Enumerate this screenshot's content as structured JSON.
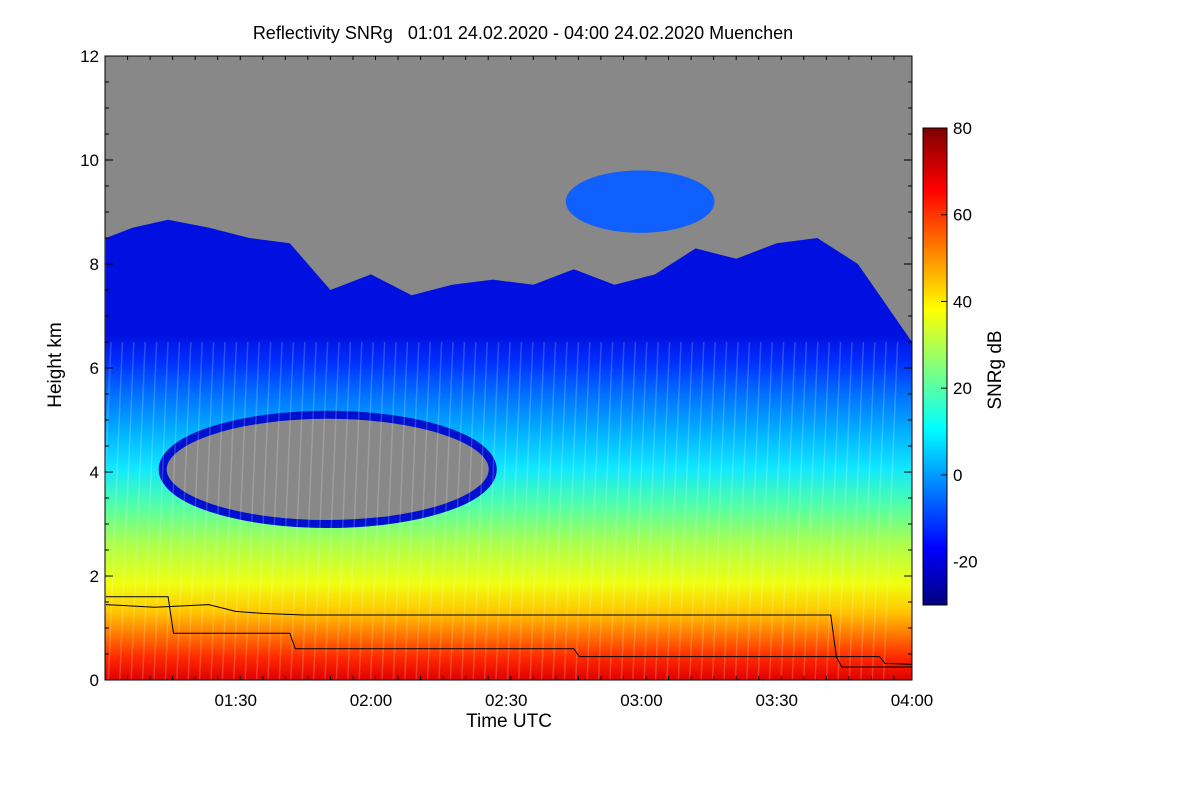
{
  "chart_data": {
    "type": "heatmap",
    "title": "Reflectivity SNRg   01:01 24.02.2020 - 04:00 24.02.2020 Muenchen",
    "xlabel": "Time UTC",
    "ylabel": "Height km",
    "xlim": [
      "01:01",
      "04:00"
    ],
    "ylim": [
      0,
      12
    ],
    "x_ticks": [
      "01:30",
      "02:00",
      "02:30",
      "03:00",
      "03:30",
      "04:00"
    ],
    "y_ticks": [
      "0",
      "2",
      "4",
      "6",
      "8",
      "10",
      "12"
    ],
    "colorbar": {
      "label": "SNRg dB",
      "range": [
        -30,
        80
      ],
      "ticks": [
        "-20",
        "0",
        "20",
        "40",
        "60",
        "80"
      ],
      "colormap": "jet",
      "no_data_color": "#888888"
    },
    "grid": false,
    "cloud_top_km": [
      [
        1.02,
        8.5
      ],
      [
        1.12,
        8.7
      ],
      [
        1.25,
        8.85
      ],
      [
        1.4,
        8.7
      ],
      [
        1.55,
        8.5
      ],
      [
        1.7,
        8.4
      ],
      [
        1.85,
        7.5
      ],
      [
        2.0,
        7.8
      ],
      [
        2.15,
        7.4
      ],
      [
        2.3,
        7.6
      ],
      [
        2.45,
        7.7
      ],
      [
        2.6,
        7.6
      ],
      [
        2.75,
        7.9
      ],
      [
        2.9,
        7.6
      ],
      [
        3.05,
        7.8
      ],
      [
        3.2,
        8.3
      ],
      [
        3.35,
        8.1
      ],
      [
        3.5,
        8.4
      ],
      [
        3.65,
        8.5
      ],
      [
        3.8,
        8.0
      ],
      [
        4.0,
        6.5
      ]
    ],
    "detached_layer": {
      "time_range": [
        2.72,
        3.27
      ],
      "height_range_km": [
        8.6,
        9.8
      ]
    },
    "reflectivity_gap": {
      "time_range": [
        1.23,
        2.45
      ],
      "height_range_km": [
        3.0,
        5.1
      ]
    },
    "profile_bands_dB": [
      {
        "height_km": 0.3,
        "snr_db": 68
      },
      {
        "height_km": 1.0,
        "snr_db": 58
      },
      {
        "height_km": 2.0,
        "snr_db": 40
      },
      {
        "height_km": 3.5,
        "snr_db": 25
      },
      {
        "height_km": 5.5,
        "snr_db": 10
      },
      {
        "height_km": 7.5,
        "snr_db": -10
      }
    ],
    "overlay_lines": [
      {
        "points": [
          [
            1.02,
            1.45
          ],
          [
            1.2,
            1.4
          ],
          [
            1.4,
            1.45
          ],
          [
            1.5,
            1.32
          ],
          [
            1.6,
            1.28
          ],
          [
            1.75,
            1.25
          ],
          [
            2.0,
            1.25
          ],
          [
            2.55,
            1.25
          ],
          [
            3.12,
            1.25
          ],
          [
            3.7,
            1.25
          ],
          [
            3.72,
            0.45
          ],
          [
            3.88,
            0.45
          ],
          [
            3.9,
            0.32
          ],
          [
            4.0,
            0.3
          ]
        ]
      },
      {
        "points": [
          [
            1.02,
            1.6
          ],
          [
            1.25,
            1.6
          ],
          [
            1.27,
            0.9
          ],
          [
            1.7,
            0.9
          ],
          [
            1.72,
            0.6
          ],
          [
            2.75,
            0.6
          ],
          [
            2.77,
            0.45
          ],
          [
            3.72,
            0.45
          ],
          [
            3.74,
            0.25
          ],
          [
            4.0,
            0.25
          ]
        ]
      }
    ]
  }
}
